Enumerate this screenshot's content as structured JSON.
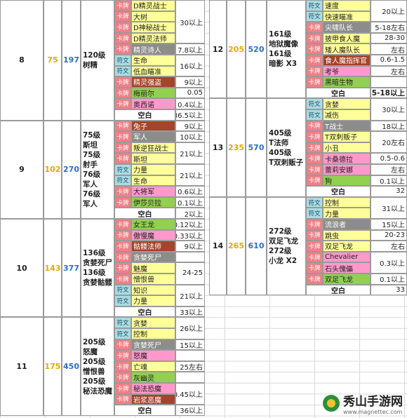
{
  "left": [
    {
      "num": "8",
      "level": "75",
      "power": "197",
      "desc": [
        "120级",
        "树精"
      ],
      "rows": [
        {
          "tag": "卡牌",
          "name": "D精灵战士",
          "color": "yellow",
          "value": "30以上",
          "span": 4
        },
        {
          "tag": "卡牌",
          "name": "大树",
          "color": "yellow"
        },
        {
          "tag": "卡牌",
          "name": "D神秘战士",
          "color": "yellow"
        },
        {
          "tag": "卡牌",
          "name": "D精灵法师",
          "color": "yellow"
        },
        {
          "tag": "卡牌",
          "name": "精灵诗人",
          "color": "gray",
          "value": "7.8以上",
          "span": 1
        },
        {
          "tag": "符文",
          "name": "生命",
          "color": "yellow",
          "value": "16以上",
          "span": 2
        },
        {
          "tag": "符文",
          "name": "低血瞄准",
          "color": "yellow"
        },
        {
          "tag": "卡牌",
          "name": "精灵强盗",
          "color": "brown",
          "value": "9以上",
          "span": 1
        },
        {
          "tag": "卡牌",
          "name": "梅丽尔",
          "color": "green",
          "value": "0.05",
          "span": 1
        },
        {
          "tag": "卡牌",
          "name": "奥西诺",
          "color": "pink",
          "value": "0.4以上",
          "span": 1
        },
        {
          "blank": "空白",
          "value": "36.5以上",
          "span": 1
        }
      ]
    },
    {
      "num": "9",
      "level": "102",
      "power": "270",
      "desc": [
        "75级",
        "斯坦",
        "75级",
        "射手",
        "76级",
        "军人",
        "76级",
        "军人"
      ],
      "rows": [
        {
          "tag": "卡牌",
          "name": "兔子",
          "color": "brown",
          "value": "9以上",
          "span": 1
        },
        {
          "tag": "卡牌",
          "name": "军人",
          "color": "gray",
          "value": "10以上",
          "span": 1
        },
        {
          "tag": "卡牌",
          "name": "叛逆狂战士",
          "color": "yellow",
          "value": "21以上",
          "span": 2
        },
        {
          "tag": "卡牌",
          "name": "斯坦",
          "color": "yellow"
        },
        {
          "tag": "符文",
          "name": "力量",
          "color": "yellow",
          "value": "21以上",
          "span": 2
        },
        {
          "tag": "符文",
          "name": "生命",
          "color": "yellow"
        },
        {
          "tag": "卡牌",
          "name": "大将军",
          "color": "pink",
          "value": "0.6以上",
          "span": 1
        },
        {
          "tag": "卡牌",
          "name": "伊莎贝拉",
          "color": "green",
          "value": "0.1以上",
          "span": 1
        },
        {
          "blank": "空白",
          "value": "2以上",
          "span": 1
        }
      ]
    },
    {
      "num": "10",
      "level": "143",
      "power": "377",
      "desc": [
        "136级",
        "贪婪死尸 X2",
        "136级",
        "贪婪骷髅 X2"
      ],
      "rows": [
        {
          "tag": "卡牌",
          "name": "女王龙",
          "color": "green",
          "value": "0.12以上",
          "span": 1
        },
        {
          "tag": "卡牌",
          "name": "傲慢魔",
          "color": "pink",
          "value": "0.33以上",
          "span": 1
        },
        {
          "tag": "卡牌",
          "name": "骷髅法师",
          "color": "brown",
          "value": "9以上",
          "span": 1
        },
        {
          "tag": "卡牌",
          "name": "贪婪死尸",
          "color": "gray"
        },
        {
          "tag": "卡牌",
          "name": "魅魔",
          "color": "yellow",
          "value": "24-25",
          "span": 2
        },
        {
          "tag": "卡牌",
          "name": "憎恨兽",
          "color": "yellow"
        },
        {
          "tag": "符文",
          "name": "知识",
          "color": "yellow",
          "value": "21以上",
          "span": 2
        },
        {
          "tag": "符文",
          "name": "力量",
          "color": "yellow"
        },
        {
          "blank": "空白",
          "value": "33以上",
          "span": 1
        }
      ]
    },
    {
      "num": "11",
      "level": "175",
      "power": "450",
      "desc": [
        "205级",
        "怒魔",
        "205级",
        "憎恨兽",
        "205级",
        "秘法恐魔"
      ],
      "rows": [
        {
          "tag": "符文",
          "name": "贪婪",
          "color": "yellow",
          "value": "26以上",
          "span": 2
        },
        {
          "tag": "符文",
          "name": "控制",
          "color": "yellow"
        },
        {
          "tag": "卡牌",
          "name": "贪婪死尸",
          "color": "gray",
          "value": "15以上",
          "span": 1
        },
        {
          "tag": "卡牌",
          "name": "怒魔",
          "color": "pink"
        },
        {
          "tag": "卡牌",
          "name": "亡魂",
          "color": "yellow",
          "value": "25左右",
          "span": 1
        },
        {
          "tag": "卡牌",
          "name": "灰幽灵",
          "color": "green"
        },
        {
          "tag": "卡牌",
          "name": "秘法恐魔",
          "color": "pink",
          "value": "0.45以上",
          "span": 2
        },
        {
          "tag": "卡牌",
          "name": "岩浆恶魔",
          "color": "brown"
        },
        {
          "blank": "空白",
          "value": "36以上",
          "span": 1
        }
      ]
    }
  ],
  "right": [
    {
      "num": "12",
      "level": "205",
      "power": "520",
      "desc": [
        "161级",
        "地狱魔像",
        "161级",
        "暗影 X3"
      ],
      "rows": [
        {
          "tag": "符文",
          "name": "速度",
          "color": "yellow",
          "value": "20以上",
          "span": 2
        },
        {
          "tag": "符文",
          "name": "快速瞄准",
          "color": "yellow"
        },
        {
          "tag": "卡牌",
          "name": "尖啸队长",
          "color": "gray",
          "value": "5-18左右",
          "span": 1
        },
        {
          "tag": "卡牌",
          "name": "披甲食人魔",
          "color": "yellow",
          "value": "28-30",
          "span": 1
        },
        {
          "tag": "卡牌",
          "name": "矮人魔队长",
          "color": "yellow",
          "value": "左右",
          "span": 1
        },
        {
          "tag": "卡牌",
          "name": "食人魔指挥官",
          "color": "brown",
          "value": "0.6-1.5",
          "span": 1
        },
        {
          "tag": "卡牌",
          "name": "考爷",
          "color": "pink",
          "value": "左右",
          "span": 1
        },
        {
          "tag": "卡牌",
          "name": "黑暗生物",
          "color": "green"
        },
        {
          "blank": "空白",
          "value": "15-18以上",
          "span": 1,
          "bold": true
        }
      ]
    },
    {
      "num": "13",
      "level": "235",
      "power": "570",
      "desc": [
        "405级",
        "T法师",
        "405级",
        "T双刺贩子"
      ],
      "rows": [
        {
          "tag": "符文",
          "name": "贪婪",
          "color": "yellow",
          "value": "30以上",
          "span": 2
        },
        {
          "tag": "符文",
          "name": "减伤",
          "color": "yellow"
        },
        {
          "tag": "卡牌",
          "name": "T战士",
          "color": "gray",
          "value": "18以上",
          "span": 1
        },
        {
          "tag": "卡牌",
          "name": "T双刺贩子",
          "color": "yellow",
          "value": "20左右",
          "span": 2
        },
        {
          "tag": "卡牌",
          "name": "小丑",
          "color": "yellow"
        },
        {
          "tag": "卡牌",
          "name": "卡桑德拉",
          "color": "pink",
          "value": "0.5-0.6",
          "span": 1
        },
        {
          "tag": "卡牌",
          "name": "蕾莉安娜",
          "color": "pink",
          "value": "左右",
          "span": 1
        },
        {
          "tag": "卡牌",
          "name": "狗",
          "color": "green",
          "value": "0.1以上",
          "span": 1
        },
        {
          "blank": "空白",
          "value": "32",
          "span": 1
        }
      ]
    },
    {
      "num": "14",
      "level": "265",
      "power": "610",
      "desc": [
        "272级",
        "双足飞龙",
        "272级",
        "小龙 X2"
      ],
      "rows": [
        {
          "tag": "符文",
          "name": "控制",
          "color": "yellow",
          "value": "31以上",
          "span": 2
        },
        {
          "tag": "符文",
          "name": "力量",
          "color": "yellow"
        },
        {
          "tag": "卡牌",
          "name": "流浪者",
          "color": "gray",
          "value": "15以上",
          "span": 1
        },
        {
          "tag": "卡牌",
          "name": "跳虫",
          "color": "yellow",
          "value": "20-23",
          "span": 1
        },
        {
          "tag": "卡牌",
          "name": "双足飞龙",
          "color": "yellow",
          "value": "左右",
          "span": 1
        },
        {
          "tag": "卡牌",
          "name": "Chevalier",
          "color": "pink",
          "value": "0.3以上",
          "span": 2
        },
        {
          "tag": "卡牌",
          "name": "石头傀儡",
          "color": "pink"
        },
        {
          "tag": "卡牌",
          "name": "双足飞龙",
          "color": "green",
          "value": "0.1以上",
          "span": 1
        },
        {
          "blank": "空白",
          "value": "33",
          "span": 1
        }
      ]
    }
  ],
  "brand": {
    "title": "秀山手游网",
    "url": "www.magnettec.com"
  }
}
